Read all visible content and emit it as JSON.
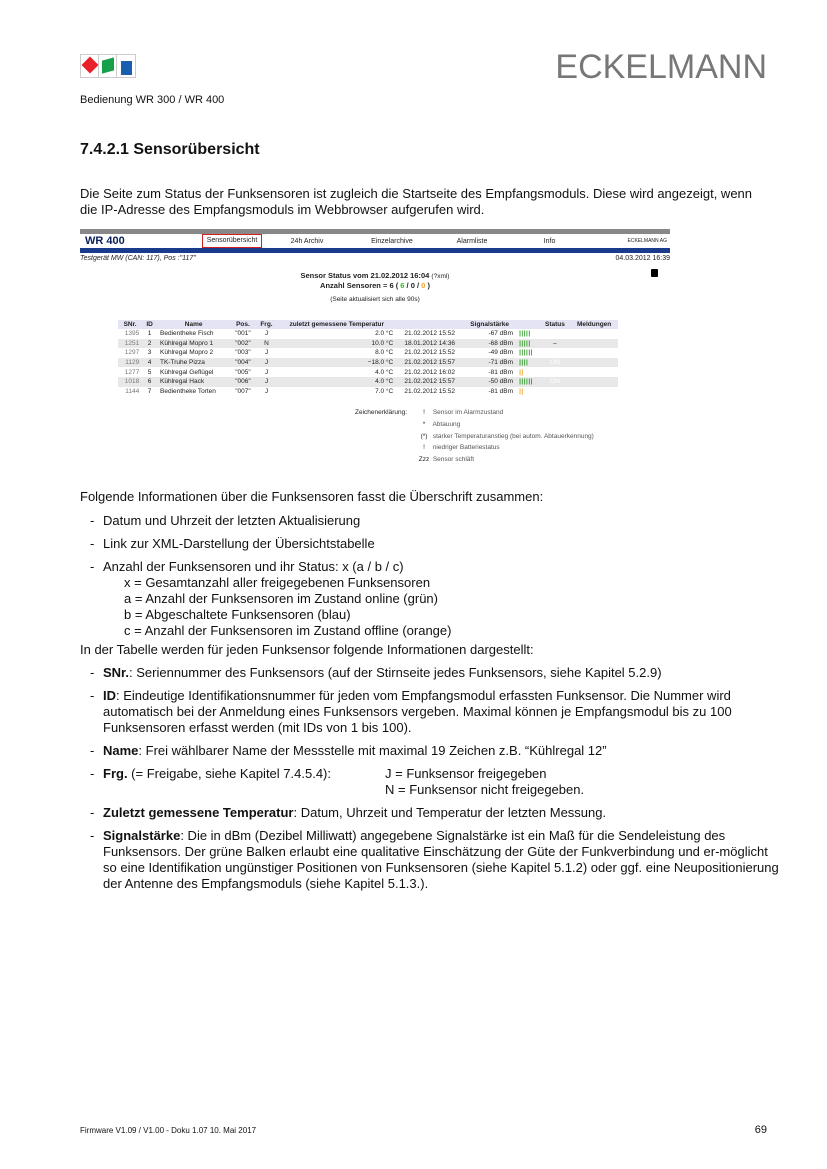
{
  "header": {
    "brand": "ECKELMANN",
    "subtitle": "Bedienung WR 300 / WR 400",
    "logo_colors": [
      "#e8202a",
      "#16a04a",
      "#1a5eb0"
    ]
  },
  "section": {
    "title": "7.4.2.1  Sensorübersicht",
    "intro": "Die Seite zum Status der Funksensoren ist zugleich die Startseite des Empfangsmoduls. Diese wird angezeigt, wenn die IP-Adresse des Empfangsmoduls im Webbrowser aufgerufen wird."
  },
  "screenshot": {
    "app_title": "WR 400",
    "nav": [
      "Sensorübersicht",
      "24h Archiv",
      "Einzelarchive",
      "Alarmliste",
      "Info"
    ],
    "company": "ECKELMANN AG",
    "device": "Testgerät MW (CAN: 117), Pos :\"117\"",
    "datetime": "04.03.2012 16:39",
    "status_title": "Sensor Status vom 21.02.2012 16:04",
    "xml_link": "(?xml)",
    "count_prefix": "Anzahl Sensoren = 6 (",
    "count_a": "6",
    "count_b": "0",
    "count_c": "0",
    "count_suffix": ")",
    "refresh": "(Seite aktualisiert sich alle 90s)",
    "columns": [
      "SNr.",
      "ID",
      "Name",
      "Pos.",
      "Frg.",
      "zuletzt gemessene Temperatur",
      "",
      "Signalstärke",
      "",
      "Status",
      "Meldungen"
    ],
    "rows": [
      [
        "1395",
        "1",
        "Bedientheke Fisch",
        "\"001\"",
        "J",
        "2.0 °C",
        "21.02.2012 15:52",
        "-67 dBm",
        "|||||",
        "ON"
      ],
      [
        "1251",
        "2",
        "Kühlregal Mopro 1",
        "\"002\"",
        "N",
        "10.0 °C",
        "18.01.2012 14:36",
        "-68 dBm",
        "|||||",
        "–"
      ],
      [
        "1297",
        "3",
        "Kühlregal Mopro 2",
        "\"003\"",
        "J",
        "8.0 °C",
        "21.02.2012 15:52",
        "-49 dBm",
        "||||||",
        "ON"
      ],
      [
        "1129",
        "4",
        "TK-Truhe Pizza",
        "\"004\"",
        "J",
        "−18.0 °C",
        "21.02.2012 15:57",
        "-71 dBm",
        "||||",
        "ON"
      ],
      [
        "1277",
        "5",
        "Kühlregal Geflügel",
        "\"005\"",
        "J",
        "4.0 °C",
        "21.02.2012 16:02",
        "-81 dBm",
        "||",
        "ON"
      ],
      [
        "1018",
        "6",
        "Kühlregal Hack",
        "\"006\"",
        "J",
        "4.0 °C",
        "21.02.2012 15:57",
        "-50 dBm",
        "||||||",
        "ON"
      ],
      [
        "1144",
        "7",
        "Bedientheke Torten",
        "\"007\"",
        "J",
        "7.0 °C",
        "21.02.2012 15:52",
        "-81 dBm",
        "||",
        "ON"
      ]
    ],
    "legend_label": "Zeichenerklärung:",
    "legend": [
      [
        "!",
        "Sensor im Alarmzustand"
      ],
      [
        "*",
        "Abtauung"
      ],
      [
        "(*)",
        "starker Temperaturanstieg (bei autom. Abtauerkennung)"
      ],
      [
        "!",
        "niedriger Batteriestatus"
      ],
      [
        "Zzz",
        "Sensor schläft"
      ]
    ],
    "colors": {
      "green": "#22e01c",
      "orange": "#f0a020",
      "navy": "#1a3a8c"
    }
  },
  "body": {
    "p1": "Folgende Informationen über die Funksensoren fasst die Überschrift zusammen:",
    "list1": [
      "Datum und Uhrzeit der letzten Aktualisierung",
      "Link zur XML-Darstellung der Übersichtstabelle",
      "Anzahl der Funksensoren und ihr Status: x (a / b / c)"
    ],
    "sub": [
      "x = Gesamtanzahl aller freigegebenen Funksensoren",
      "a = Anzahl der Funksensoren im Zustand online (grün)",
      "b = Abgeschaltete Funksensoren (blau)",
      "c = Anzahl der Funksensoren im Zustand offline (orange)"
    ],
    "p2": "In der Tabelle werden für jeden Funksensor folgende Informationen dargestellt:",
    "list2": [
      {
        "b": "SNr.",
        "t": ": Seriennummer des Funksensors (auf der Stirnseite jedes Funksensors, siehe Kapitel 5.2.9)"
      },
      {
        "b": "ID",
        "t": ": Eindeutige Identifikationsnummer für jeden vom Empfangsmodul erfassten Funksensor. Die Nummer wird automatisch bei der Anmeldung eines Funksensors vergeben. Maximal können je Empfangsmodul bis zu 100 Funksensoren erfasst werden (mit IDs von 1 bis 100)."
      },
      {
        "b": "Name",
        "t": ": Frei wählbarer Name der Messstelle mit maximal 19 Zeichen z.B. “Kühlregal 12”"
      },
      {
        "b": "Frg.",
        "t": " (= Freigabe, siehe Kapitel 7.4.5.4):",
        "j": "J = Funksensor freigegeben",
        "n": "N = Funksensor nicht freigegeben."
      },
      {
        "b": "Zuletzt gemessene Temperatur",
        "t": ": Datum, Uhrzeit und Temperatur der letzten Messung."
      },
      {
        "b": "Signalstärke",
        "t": ": Die in dBm (Dezibel Milliwatt) angegebene Signalstärke ist ein Maß für die Sendeleistung des Funksensors. Der grüne Balken erlaubt eine qualitative Einschätzung der Güte der Funkverbindung und er-möglicht so eine Identifikation ungünstiger Positionen von Funksensoren (siehe Kapitel 5.1.2) oder ggf. eine Neupositionierung der Antenne des Empfangsmoduls (siehe Kapitel 5.1.3.)."
      }
    ]
  },
  "footer": {
    "left": "Firmware V1.09 / V1.00 - Doku 1.07   10. Mai 2017",
    "page": "69"
  }
}
